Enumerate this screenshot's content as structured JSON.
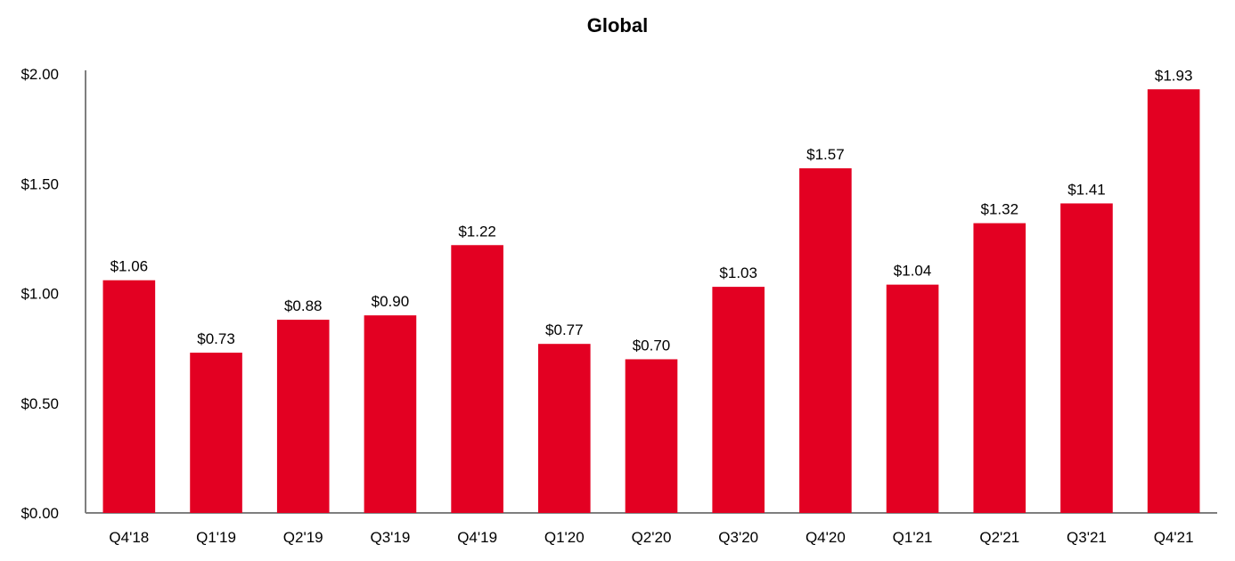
{
  "chart_data": {
    "type": "bar",
    "title": "Global",
    "xlabel": "",
    "ylabel": "",
    "ylim": [
      0,
      2.0
    ],
    "yticks": [
      0,
      0.5,
      1.0,
      1.5,
      2.0
    ],
    "ytick_labels": [
      "$0.00",
      "$0.50",
      "$1.00",
      "$1.50",
      "$2.00"
    ],
    "categories": [
      "Q4'18",
      "Q1'19",
      "Q2'19",
      "Q3'19",
      "Q4'19",
      "Q1'20",
      "Q2'20",
      "Q3'20",
      "Q4'20",
      "Q1'21",
      "Q2'21",
      "Q3'21",
      "Q4'21"
    ],
    "values": [
      1.06,
      0.73,
      0.88,
      0.9,
      1.22,
      0.77,
      0.7,
      1.03,
      1.57,
      1.04,
      1.32,
      1.41,
      1.93
    ],
    "data_labels": [
      "$1.06",
      "$0.73",
      "$0.88",
      "$0.90",
      "$1.22",
      "$0.77",
      "$0.70",
      "$1.03",
      "$1.57",
      "$1.04",
      "$1.32",
      "$1.41",
      "$1.93"
    ],
    "bar_color": "#e30022",
    "axis_color": "#7f7f7f",
    "grid": false,
    "legend": "none"
  }
}
